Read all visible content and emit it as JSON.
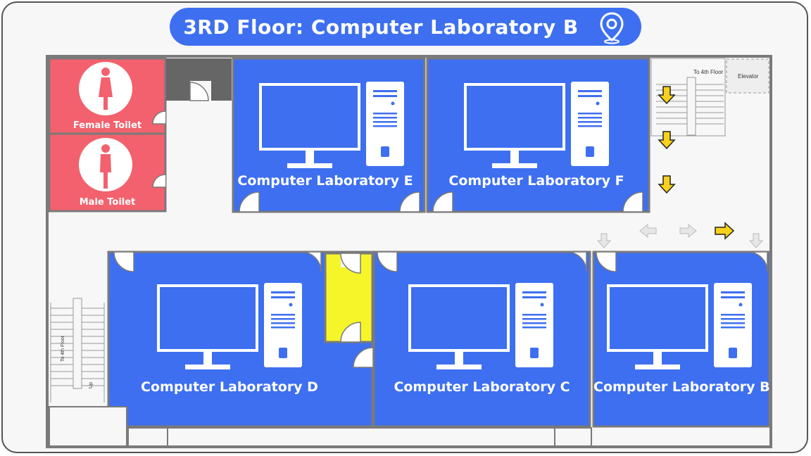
{
  "header": {
    "title": "3RD Floor: Computer Laboratory B",
    "location_icon": "map-pin-icon"
  },
  "rooms": {
    "female_toilet": "Female Toilet",
    "male_toilet": "Male Toilet",
    "lab_e": "Computer Laboratory E",
    "lab_f": "Computer Laboratory F",
    "lab_d": "Computer Laboratory D",
    "lab_c": "Computer Laboratory C",
    "lab_b": "Computer Laboratory B"
  },
  "labels": {
    "stairs_top": "To 4th Floor",
    "elevator": "Elevator",
    "stairs_left": "To 4th Floor",
    "up": "Up"
  },
  "colors": {
    "lab_blue": "#3d6ff0",
    "toilet_red": "#f2616d",
    "highlight_yellow": "#f5f52a",
    "arrow_yellow": "#f7d11c",
    "wall": "#7a7a7a"
  },
  "icons": [
    "map-pin-icon",
    "computer-icon",
    "female-person-icon",
    "male-person-icon",
    "direction-arrow-icon"
  ]
}
